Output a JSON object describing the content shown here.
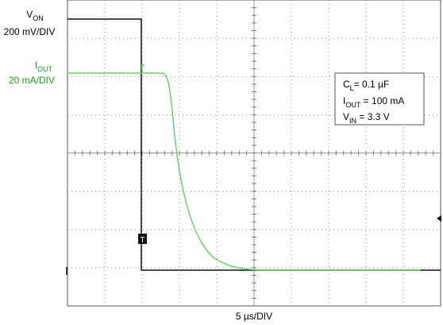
{
  "channels": [
    {
      "name": {
        "main": "V",
        "sub": "ON"
      },
      "scale": "200 mV/DIV"
    },
    {
      "name": {
        "main": "I",
        "sub": "OUT"
      },
      "scale": "20 mA/DIV"
    }
  ],
  "conditions": [
    {
      "main": "C",
      "sub": "L",
      "rest": "= 0.1 µF"
    },
    {
      "main": "I",
      "sub": "OUT",
      "rest": " = 100 mA"
    },
    {
      "main": "V",
      "sub": "IN",
      "rest": " = 3.3 V"
    }
  ],
  "time_scale": "5 µs/DIV",
  "trigger_marker": "T"
}
